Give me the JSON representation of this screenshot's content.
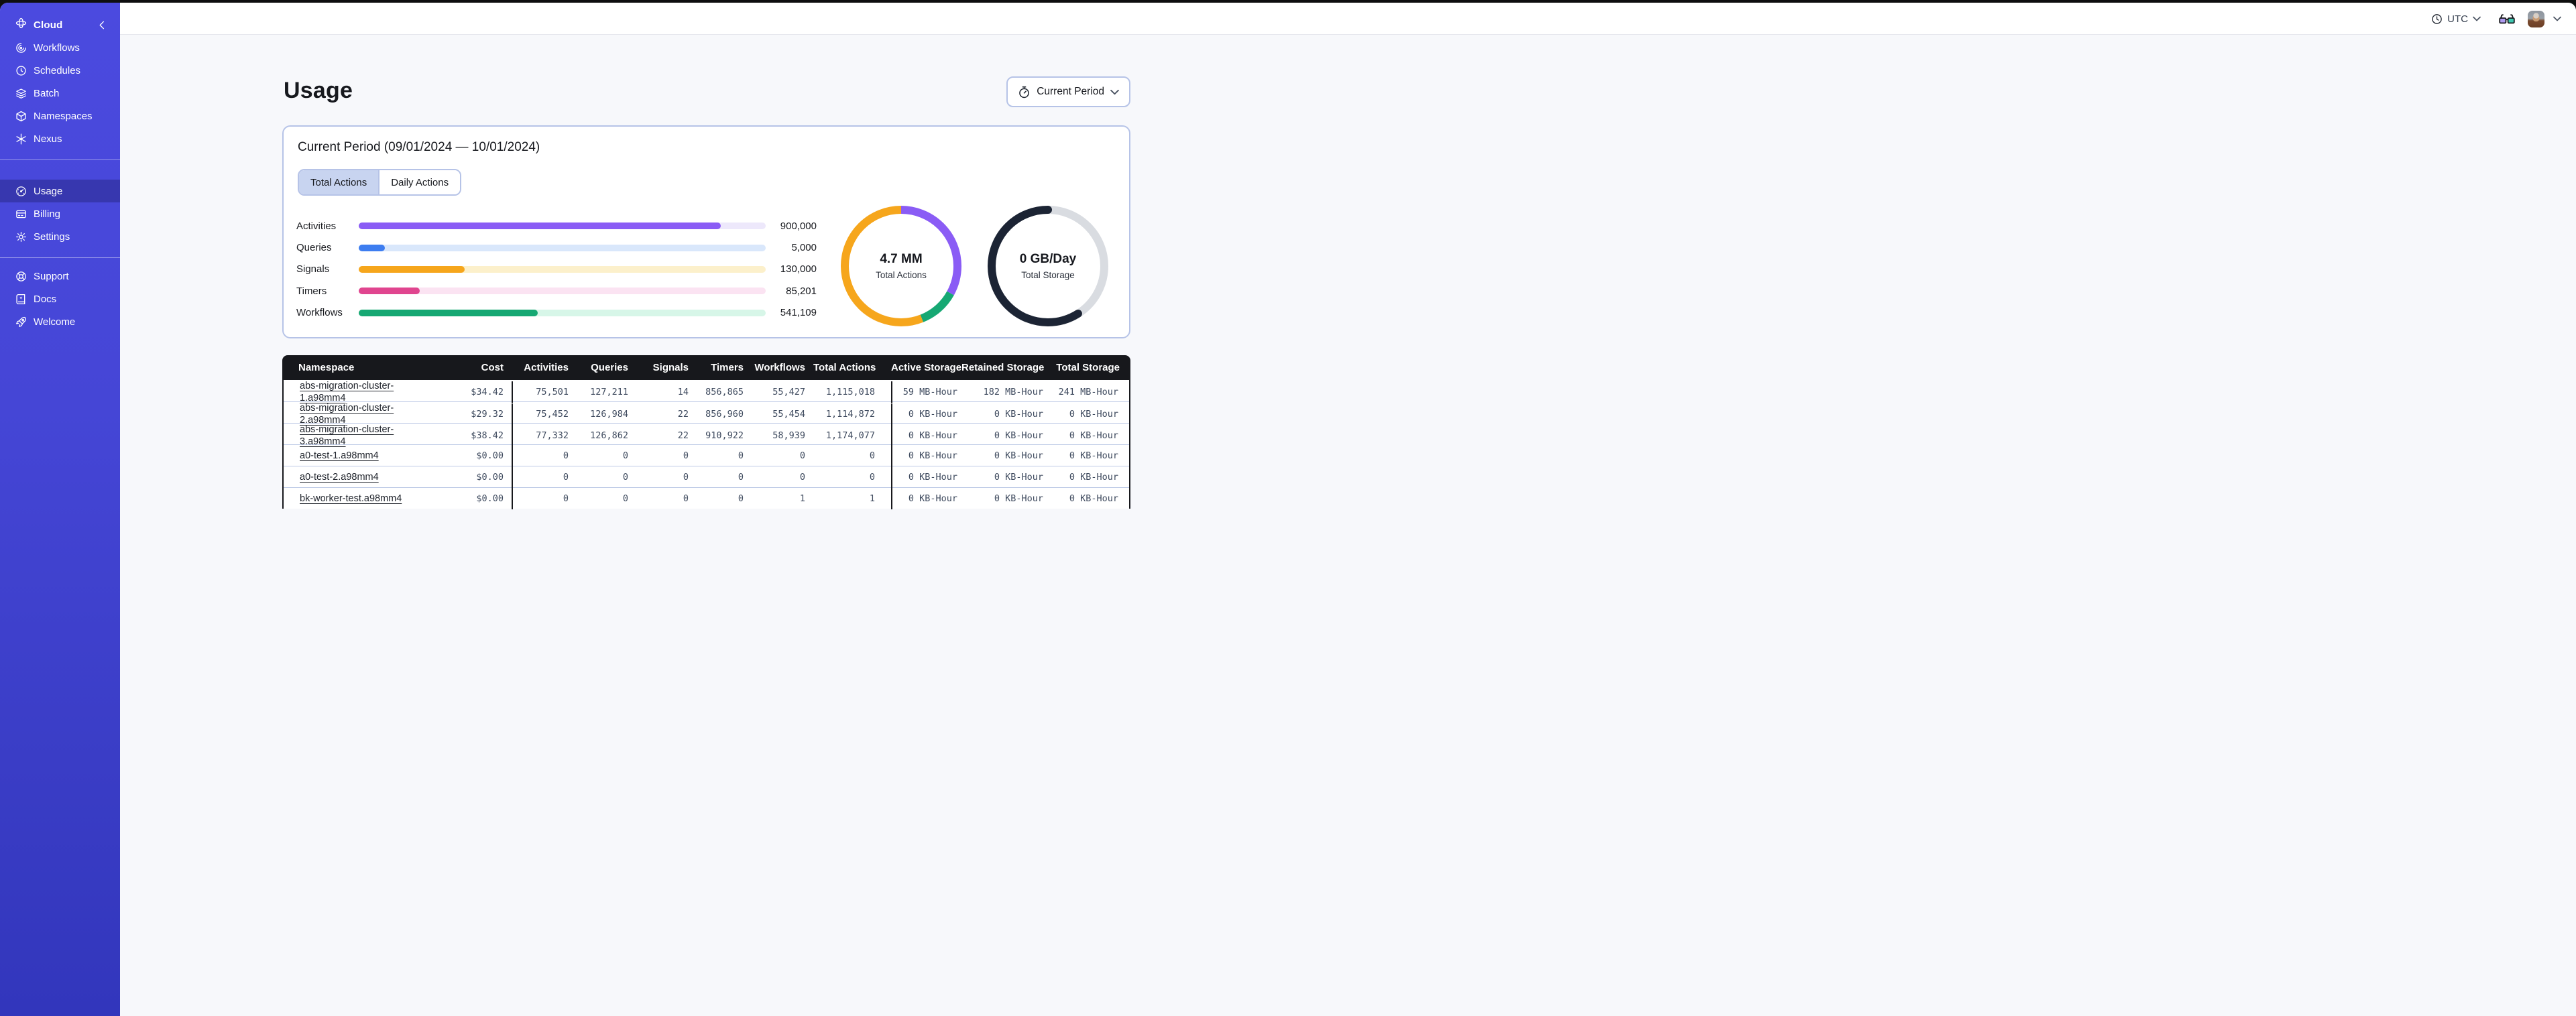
{
  "sidebar": {
    "logo": {
      "label": "Cloud",
      "icon": "orbit"
    },
    "sections": [
      {
        "items": [
          {
            "label": "Workflows",
            "icon": "workflows"
          },
          {
            "label": "Schedules",
            "icon": "schedule"
          },
          {
            "label": "Batch",
            "icon": "layers"
          },
          {
            "label": "Namespaces",
            "icon": "cube"
          },
          {
            "label": "Nexus",
            "icon": "asterisk"
          }
        ]
      },
      {
        "items": [
          {
            "label": "Usage",
            "icon": "gauge",
            "active": true
          },
          {
            "label": "Billing",
            "icon": "billing"
          },
          {
            "label": "Settings",
            "icon": "gear"
          }
        ]
      },
      {
        "items": [
          {
            "label": "Support",
            "icon": "lifebuoy"
          },
          {
            "label": "Docs",
            "icon": "book"
          },
          {
            "label": "Welcome",
            "icon": "rocket"
          }
        ]
      }
    ]
  },
  "topbar": {
    "timezone_label": "UTC"
  },
  "page": {
    "title": "Usage",
    "period_button": {
      "label": "Current Period",
      "icon": "stopwatch"
    }
  },
  "usage_card": {
    "title": "Current Period (09/01/2024 — 10/01/2024)",
    "tabs": [
      {
        "label": "Total Actions",
        "active": true
      },
      {
        "label": "Daily Actions",
        "active": false
      }
    ]
  },
  "chart_data": [
    {
      "type": "bar",
      "orientation": "horizontal",
      "title": "Actions by type, current period",
      "categories": [
        "Activities",
        "Queries",
        "Signals",
        "Timers",
        "Workflows"
      ],
      "values": [
        900000,
        5000,
        130000,
        85201,
        541109
      ],
      "display_values": [
        "900,000",
        "5,000",
        "130,000",
        "85,201",
        "541,109"
      ],
      "fill_pct": [
        89,
        6.4,
        26,
        15,
        44
      ],
      "colors": [
        "#8a5cf5",
        "#3d7df0",
        "#f6a61c",
        "#e0458f",
        "#16a873"
      ],
      "track_colors": [
        "#ede8fb",
        "#d9e7fb",
        "#fcf0cb",
        "#fbe3f2",
        "#d7f6e8"
      ]
    },
    {
      "type": "donut",
      "center_label": "4.7 MM",
      "center_sublabel": "Total Actions",
      "segments": [
        {
          "name": "activities",
          "color": "#8a5cf5",
          "pct": 33,
          "rounded": false
        },
        {
          "name": "workflows",
          "color": "#16a873",
          "pct": 11,
          "rounded": false
        },
        {
          "name": "signals",
          "color": "#f6a61c",
          "pct": 56,
          "rounded": false
        }
      ]
    },
    {
      "type": "donut",
      "center_label": "0 GB/Day",
      "center_sublabel": "Total Storage",
      "segments": [
        {
          "name": "storage-empty",
          "color": "#d9dce1",
          "pct": 41,
          "rounded": false
        },
        {
          "name": "storage-ring",
          "color": "#1c2434",
          "pct": 59,
          "rounded": true
        }
      ]
    }
  ],
  "table": {
    "columns": [
      "Namespace",
      "Cost",
      "Activities",
      "Queries",
      "Signals",
      "Timers",
      "Workflows",
      "Total Actions",
      "Active Storage",
      "Retained Storage",
      "Total Storage"
    ],
    "column_keys": [
      "namespace",
      "cost",
      "activities",
      "queries",
      "signals",
      "timers",
      "workflows",
      "total-actions",
      "active-storage",
      "retained-storage",
      "total-storage"
    ],
    "rows": [
      [
        "abs-migration-cluster-1.a98mm4",
        "$34.42",
        "75,501",
        "127,211",
        "14",
        "856,865",
        "55,427",
        "1,115,018",
        "59 MB-Hour",
        "182 MB-Hour",
        "241 MB-Hour"
      ],
      [
        "abs-migration-cluster-2.a98mm4",
        "$29.32",
        "75,452",
        "126,984",
        "22",
        "856,960",
        "55,454",
        "1,114,872",
        "0 KB-Hour",
        "0 KB-Hour",
        "0 KB-Hour"
      ],
      [
        "abs-migration-cluster-3.a98mm4",
        "$38.42",
        "77,332",
        "126,862",
        "22",
        "910,922",
        "58,939",
        "1,174,077",
        "0 KB-Hour",
        "0 KB-Hour",
        "0 KB-Hour"
      ],
      [
        "a0-test-1.a98mm4",
        "$0.00",
        "0",
        "0",
        "0",
        "0",
        "0",
        "0",
        "0 KB-Hour",
        "0 KB-Hour",
        "0 KB-Hour"
      ],
      [
        "a0-test-2.a98mm4",
        "$0.00",
        "0",
        "0",
        "0",
        "0",
        "0",
        "0",
        "0 KB-Hour",
        "0 KB-Hour",
        "0 KB-Hour"
      ],
      [
        "bk-worker-test.a98mm4",
        "$0.00",
        "0",
        "0",
        "0",
        "0",
        "1",
        "1",
        "0 KB-Hour",
        "0 KB-Hour",
        "0 KB-Hour"
      ]
    ]
  },
  "colors": {
    "sidebar_top": "#4b4adf",
    "sidebar_bottom": "#3236bc",
    "accent_border": "#b6c3e7",
    "active_tab_bg": "#c8d4f0",
    "table_header_bg": "#17181c",
    "row_divider": "#bcc9e6",
    "mono_text": "#3e4a5e",
    "main_bg": "#f7f8fb"
  }
}
